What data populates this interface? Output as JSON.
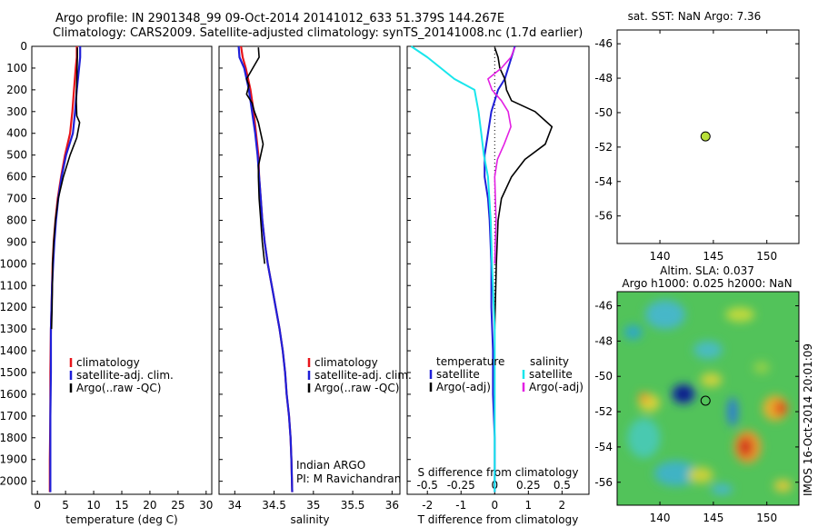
{
  "header": {
    "line1": "Argo profile: IN 2901348_99 09-Oct-2014 20141012_633 51.379S 144.267E",
    "line2": "Climatology: CARS2009. Satellite-adjusted climatology: synTS_20141008.nc (1.7d earlier)"
  },
  "watermark": "IMOS 16-Oct-2014 20:01:09",
  "colors": {
    "climatology": "#e8141a",
    "satellite": "#1f1fd8",
    "argo": "#000000",
    "cyan": "#19e6ec",
    "magenta": "#e31fe3",
    "marker": "#b8e03a"
  },
  "chart_data": [
    {
      "type": "line",
      "xlabel": "temperature (deg C)",
      "ylabel": "",
      "xlim": [
        -1,
        31
      ],
      "ylim": [
        2060,
        0
      ],
      "xticks": [
        "0",
        "5",
        "10",
        "15",
        "20",
        "25",
        "30"
      ],
      "yticks": [
        "0",
        "100",
        "200",
        "300",
        "400",
        "500",
        "600",
        "700",
        "800",
        "900",
        "1000",
        "1100",
        "1200",
        "1300",
        "1400",
        "1500",
        "1600",
        "1700",
        "1800",
        "1900",
        "2000"
      ],
      "legend": [
        "climatology",
        "satellite-adj. clim.",
        "Argo(..raw -QC)"
      ],
      "series": [
        {
          "name": "climatology",
          "x": [
            7.0,
            7.0,
            6.8,
            6.5,
            6.2,
            5.8,
            4.9,
            4.2,
            3.6,
            3.2,
            2.9,
            2.7,
            2.6,
            2.5,
            2.4,
            2.3,
            2.3,
            2.2,
            2.2
          ],
          "y": [
            0,
            50,
            100,
            200,
            300,
            400,
            500,
            600,
            700,
            800,
            900,
            1000,
            1100,
            1200,
            1300,
            1500,
            1700,
            1900,
            2050
          ]
        },
        {
          "name": "satellite-adj. clim.",
          "x": [
            7.6,
            7.6,
            7.4,
            7.0,
            6.7,
            6.3,
            5.1,
            4.3,
            3.7,
            3.3,
            3.0,
            2.8,
            2.6,
            2.5,
            2.4,
            2.4,
            2.3,
            2.3,
            2.3
          ],
          "y": [
            0,
            50,
            100,
            200,
            300,
            400,
            500,
            600,
            700,
            800,
            900,
            1000,
            1100,
            1200,
            1300,
            1500,
            1700,
            1900,
            2050
          ]
        },
        {
          "name": "Argo(..raw -QC)",
          "x": [
            7.1,
            7.1,
            7.0,
            6.9,
            7.0,
            7.5,
            7.0,
            5.8,
            4.6,
            3.7,
            3.2,
            2.9,
            2.7,
            2.6,
            2.5
          ],
          "y": [
            5,
            50,
            150,
            250,
            320,
            350,
            420,
            500,
            600,
            700,
            800,
            900,
            1000,
            1200,
            1300
          ]
        }
      ]
    },
    {
      "type": "line",
      "xlabel": "salinity",
      "xlim": [
        33.8,
        36.1
      ],
      "ylim": [
        2060,
        0
      ],
      "xticks": [
        "34",
        "34.5",
        "35",
        "35.5",
        "36"
      ],
      "legend": [
        "climatology",
        "satellite-adj. clim.",
        "Argo(..raw -QC)"
      ],
      "annotations": [
        "Indian ARGO",
        "PI: M Ravichandran"
      ],
      "series": [
        {
          "name": "climatology",
          "x": [
            34.08,
            34.1,
            34.14,
            34.2,
            34.24,
            34.27,
            34.3,
            34.31,
            34.33,
            34.35,
            34.38,
            34.42,
            34.47,
            34.52,
            34.57,
            34.61,
            34.64,
            34.66,
            34.69,
            34.71,
            34.72,
            34.73
          ],
          "y": [
            0,
            50,
            100,
            200,
            300,
            400,
            500,
            600,
            700,
            800,
            900,
            1000,
            1100,
            1200,
            1300,
            1400,
            1500,
            1600,
            1700,
            1800,
            1900,
            2050
          ]
        },
        {
          "name": "satellite-adj. clim.",
          "x": [
            34.05,
            34.06,
            34.12,
            34.18,
            34.22,
            34.26,
            34.29,
            34.31,
            34.33,
            34.35,
            34.38,
            34.42,
            34.47,
            34.52,
            34.57,
            34.61,
            34.64,
            34.66,
            34.69,
            34.71,
            34.72,
            34.73
          ],
          "y": [
            0,
            50,
            100,
            200,
            300,
            400,
            500,
            600,
            700,
            800,
            900,
            1000,
            1100,
            1200,
            1300,
            1400,
            1500,
            1600,
            1700,
            1800,
            1900,
            2050
          ]
        },
        {
          "name": "Argo(..raw -QC)",
          "x": [
            34.3,
            34.31,
            34.23,
            34.15,
            34.18,
            34.15,
            34.22,
            34.25,
            34.3,
            34.33,
            34.36,
            34.33,
            34.3,
            34.3,
            34.31,
            34.33,
            34.35,
            34.38
          ],
          "y": [
            5,
            50,
            100,
            150,
            180,
            220,
            260,
            300,
            350,
            400,
            450,
            500,
            550,
            600,
            700,
            800,
            900,
            1000
          ]
        }
      ]
    },
    {
      "type": "line",
      "xlabel": "T difference from climatology",
      "xlabel2": "S difference from climatology",
      "xlim": [
        -2.6,
        2.8
      ],
      "ylim": [
        2060,
        0
      ],
      "xticks": [
        "-2",
        "-1",
        "0",
        "1",
        "2"
      ],
      "xticks2": [
        "-0.5",
        "-0.25",
        "0",
        "0.25",
        "0.5"
      ],
      "legend_titles": [
        "temperature",
        "salinity"
      ],
      "legend": [
        "satellite",
        "Argo(-adj)",
        "satellite",
        "Argo(-adj)"
      ],
      "series": [
        {
          "name": "temperature satellite",
          "x": [
            0.6,
            0.5,
            0.4,
            0.3,
            0.1,
            -0.1,
            -0.2,
            -0.3,
            -0.3,
            -0.2,
            -0.15,
            -0.1,
            -0.1,
            -0.05,
            -0.05,
            0.0,
            0.0
          ],
          "y": [
            0,
            50,
            100,
            150,
            200,
            300,
            400,
            500,
            600,
            700,
            800,
            1000,
            1200,
            1400,
            1600,
            1800,
            2050
          ]
        },
        {
          "name": "temperature Argo(-adj)",
          "x": [
            0.0,
            0.1,
            0.15,
            0.3,
            0.35,
            0.5,
            1.2,
            1.7,
            1.5,
            0.9,
            0.5,
            0.2,
            0.1,
            0.05,
            0.0
          ],
          "y": [
            5,
            50,
            100,
            150,
            200,
            250,
            300,
            370,
            450,
            520,
            600,
            700,
            800,
            1000,
            1300
          ]
        },
        {
          "name": "salinity satellite",
          "x": [
            -0.62,
            -0.5,
            -0.4,
            -0.3,
            -0.15,
            -0.12,
            -0.1,
            -0.08,
            -0.05,
            -0.03,
            -0.02,
            0.0,
            0.0
          ],
          "y": [
            0,
            50,
            100,
            150,
            200,
            300,
            400,
            500,
            600,
            800,
            1000,
            1300,
            2050
          ]
        },
        {
          "name": "salinity Argo(-adj)",
          "x": [
            0.15,
            0.12,
            0.05,
            -0.05,
            -0.02,
            0.05,
            0.1,
            0.12,
            0.07,
            0.02,
            0.0,
            0.01,
            0.0
          ],
          "y": [
            5,
            50,
            100,
            150,
            200,
            250,
            300,
            370,
            450,
            520,
            600,
            800,
            1000
          ]
        }
      ]
    },
    {
      "type": "scatter",
      "title": "sat. SST: NaN Argo: 7.36",
      "xlim": [
        136,
        153
      ],
      "ylim": [
        -57.6,
        -45.2
      ],
      "xticks": [
        "140",
        "145",
        "150"
      ],
      "yticks": [
        "-46",
        "-48",
        "-50",
        "-52",
        "-54",
        "-56"
      ],
      "points": [
        {
          "x": 144.267,
          "y": -51.379
        }
      ]
    },
    {
      "type": "heatmap",
      "title": "Altim. SLA: 0.037",
      "subtitle": "Argo h1000: 0.025 h2000: NaN",
      "xlim": [
        136,
        153
      ],
      "ylim": [
        -57.3,
        -45.2
      ],
      "xticks": [
        "140",
        "145",
        "150"
      ],
      "yticks": [
        "-46",
        "-48",
        "-50",
        "-52",
        "-54",
        "-56"
      ],
      "points": [
        {
          "x": 144.267,
          "y": -51.379
        }
      ]
    }
  ]
}
